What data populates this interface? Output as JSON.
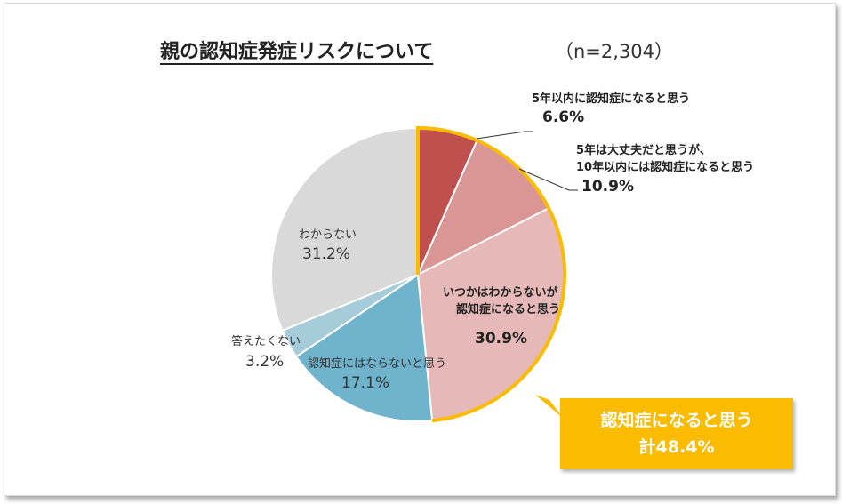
{
  "chart_data": {
    "type": "pie",
    "title": "親の認知症発症リスクについて",
    "sample_size": "（n=2,304）",
    "start_angle_deg": 0,
    "direction": "clockwise",
    "slices": [
      {
        "label": "5年以内に認知症になると思う",
        "value": 6.6,
        "display": "6.6%",
        "color": "#c0504d",
        "highlight": true
      },
      {
        "label": "5年は大丈夫だと思うが、10年以内には認知症になると思う",
        "label_lines": [
          "5年は大丈夫だと思うが、",
          "10年以内には認知症になると思う"
        ],
        "value": 10.9,
        "display": "10.9%",
        "color": "#d99694",
        "highlight": true
      },
      {
        "label": "いつかはわからないが認知症になると思う",
        "label_lines": [
          "いつかはわからないが",
          "認知症になると思う"
        ],
        "value": 30.9,
        "display": "30.9%",
        "color": "#e6b9b8",
        "highlight": true
      },
      {
        "label": "認知症にはならないと思う",
        "value": 17.1,
        "display": "17.1%",
        "color": "#6fb3cc",
        "highlight": false
      },
      {
        "label": "答えたくない",
        "value": 3.2,
        "display": "3.2%",
        "color": "#a6cbd9",
        "highlight": false
      },
      {
        "label": "わからない",
        "value": 31.2,
        "display": "31.2%",
        "color": "#d9d9d9",
        "highlight": false
      }
    ],
    "highlight_color": "#fbbb00",
    "callout": {
      "line1": "認知症になると思う",
      "line2": "計48.4%"
    }
  }
}
